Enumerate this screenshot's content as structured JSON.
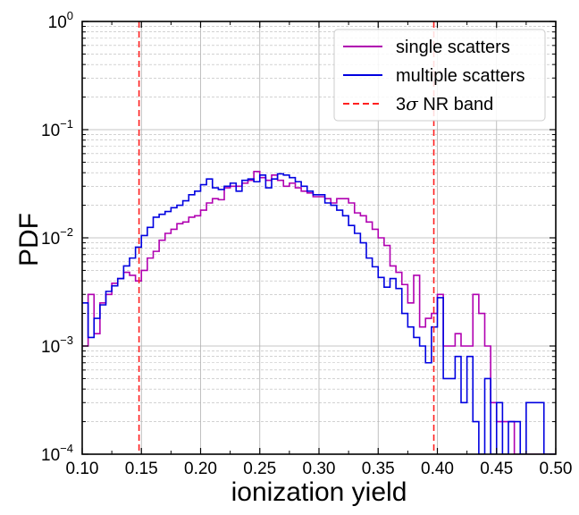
{
  "chart_data": {
    "type": "histogram-step",
    "title": "",
    "xlabel": "ionization yield",
    "ylabel": "PDF",
    "xlim": [
      0.1,
      0.5
    ],
    "ylim": [
      0.0001,
      1
    ],
    "yscale": "log",
    "bin_width": 0.005,
    "x_start": 0.1,
    "x_ticks": [
      0.1,
      0.15,
      0.2,
      0.25,
      0.3,
      0.35,
      0.4,
      0.45,
      0.5
    ],
    "x_tick_labels": [
      "0.10",
      "0.15",
      "0.20",
      "0.25",
      "0.30",
      "0.35",
      "0.40",
      "0.45",
      "0.50"
    ],
    "y_ticks": [
      {
        "value": 0.0001,
        "base": "10",
        "exp": "−4"
      },
      {
        "value": 0.001,
        "base": "10",
        "exp": "−3"
      },
      {
        "value": 0.01,
        "base": "10",
        "exp": "−2"
      },
      {
        "value": 0.1,
        "base": "10",
        "exp": "−1"
      },
      {
        "value": 1,
        "base": "10",
        "exp": "0"
      }
    ],
    "grid": true,
    "legend_position": "top-right",
    "series": [
      {
        "name": "single scatters",
        "color": "#b000b0",
        "values": [
          0.001,
          0.003,
          0.0013,
          0.0025,
          0.003,
          0.0038,
          0.0042,
          0.0048,
          0.0045,
          0.004,
          0.005,
          0.0065,
          0.0075,
          0.0095,
          0.011,
          0.012,
          0.0135,
          0.014,
          0.0155,
          0.016,
          0.018,
          0.021,
          0.023,
          0.0225,
          0.029,
          0.03,
          0.03,
          0.032,
          0.034,
          0.041,
          0.036,
          0.034,
          0.038,
          0.034,
          0.03,
          0.032,
          0.029,
          0.027,
          0.026,
          0.024,
          0.024,
          0.023,
          0.021,
          0.023,
          0.023,
          0.021,
          0.017,
          0.016,
          0.014,
          0.012,
          0.01,
          0.0085,
          0.0055,
          0.0048,
          0.0037,
          0.0025,
          0.0045,
          0.0015,
          0.0018,
          0.002,
          0.003,
          0.001,
          0.001,
          0.0013,
          0.001,
          0.001,
          0.003,
          0.002,
          0.001,
          0.0003,
          0.0002,
          0.0002,
          0.0002,
          0.0001,
          0.0001,
          0.0001,
          0.0001,
          0.0001,
          0.0001,
          0.0001,
          0.0001,
          0.0005,
          0.0001,
          0.0001,
          0.0001,
          0.0001,
          0.0001,
          0.0001,
          0.0001,
          0.0001
        ]
      },
      {
        "name": "multiple scatters",
        "color": "#0000e0",
        "values": [
          0.0025,
          0.0012,
          0.0018,
          0.0024,
          0.0032,
          0.0036,
          0.0042,
          0.0055,
          0.0065,
          0.0082,
          0.0105,
          0.0125,
          0.0155,
          0.0165,
          0.0175,
          0.019,
          0.02,
          0.022,
          0.025,
          0.027,
          0.031,
          0.035,
          0.029,
          0.028,
          0.03,
          0.032,
          0.027,
          0.034,
          0.035,
          0.033,
          0.038,
          0.029,
          0.035,
          0.039,
          0.038,
          0.036,
          0.033,
          0.03,
          0.027,
          0.025,
          0.025,
          0.021,
          0.02,
          0.018,
          0.016,
          0.013,
          0.011,
          0.009,
          0.0065,
          0.0054,
          0.0043,
          0.0035,
          0.0042,
          0.0034,
          0.002,
          0.0015,
          0.0012,
          0.001,
          0.0007,
          0.0015,
          0.0028,
          0.0005,
          0.0005,
          0.0008,
          0.0003,
          0.0008,
          0.0002,
          0.0001,
          0.0005,
          0.0001,
          0.0003,
          0.0001,
          0.0002,
          0.0002,
          0.0001,
          0.0003,
          0.0003,
          0.0003,
          0.0001,
          0.0001,
          0.0001,
          0.0001,
          0.0001,
          0.0001,
          0.0001,
          0.0001,
          0.0001,
          0.0001,
          0.0001,
          0.0001
        ]
      }
    ],
    "reference_lines": [
      {
        "x": 0.148,
        "color": "#ff2020",
        "style": "dashed"
      },
      {
        "x": 0.397,
        "color": "#ff2020",
        "style": "dashed"
      }
    ],
    "legend": [
      {
        "label": "single scatters",
        "color": "#b000b0",
        "style": "solid"
      },
      {
        "label": "multiple scatters",
        "color": "#0000e0",
        "style": "solid"
      },
      {
        "label_prefix": "3",
        "label_symbol": "σ",
        "label_suffix": " NR band",
        "color": "#ff2020",
        "style": "dashed"
      }
    ]
  }
}
